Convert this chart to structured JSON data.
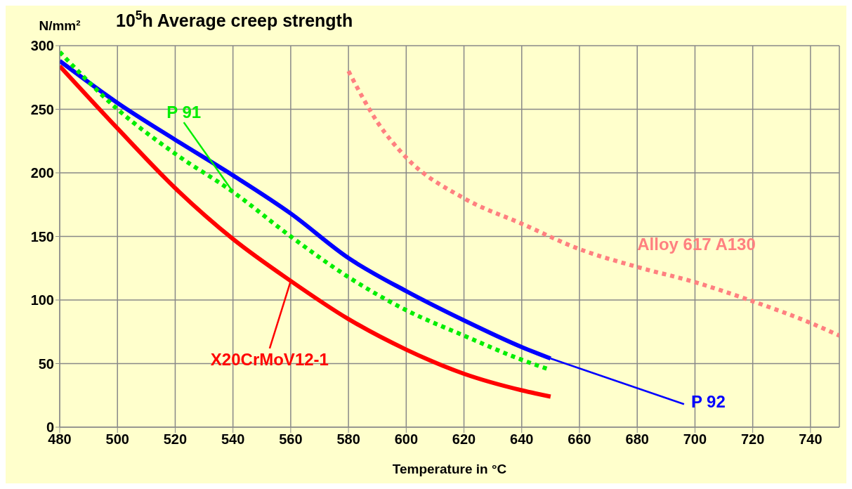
{
  "chart_data": {
    "type": "line",
    "title": "10$^{5}$h Average creep strength",
    "xlabel": "Temperature in °C",
    "ylabel": "N/mm²",
    "xlim": [
      480,
      750
    ],
    "xticks": [
      480,
      500,
      520,
      540,
      560,
      580,
      600,
      620,
      640,
      660,
      680,
      700,
      720,
      740
    ],
    "ylim": [
      0,
      300
    ],
    "yticks": [
      0,
      50,
      100,
      150,
      200,
      250,
      300
    ],
    "grid": true,
    "series": [
      {
        "name": "X20CrMoV12-1",
        "color": "#ff0000",
        "line_style": "solid",
        "x": [
          480,
          500,
          520,
          540,
          560,
          580,
          600,
          620,
          640,
          650
        ],
        "values": [
          284,
          235,
          188,
          148,
          115,
          85,
          61,
          42,
          29,
          24
        ]
      },
      {
        "name": "P 92",
        "color": "#0000ff",
        "line_style": "solid",
        "x": [
          480,
          500,
          520,
          540,
          560,
          580,
          600,
          620,
          640,
          650
        ],
        "values": [
          288,
          255,
          226,
          198,
          168,
          133,
          107,
          84,
          63,
          54
        ]
      },
      {
        "name": "P 91",
        "color": "#00ee00",
        "line_style": "dotted",
        "x": [
          480,
          500,
          520,
          540,
          560,
          580,
          600,
          620,
          640,
          650
        ],
        "values": [
          295,
          250,
          215,
          185,
          150,
          118,
          92,
          72,
          53,
          45
        ]
      },
      {
        "name": "Alloy 617 A130",
        "color": "#ff8080",
        "line_style": "dotted",
        "x": [
          580,
          590,
          600,
          620,
          640,
          660,
          680,
          700,
          720,
          740,
          750
        ],
        "values": [
          280,
          240,
          212,
          180,
          160,
          140,
          126,
          114,
          99,
          82,
          72
        ]
      }
    ]
  }
}
